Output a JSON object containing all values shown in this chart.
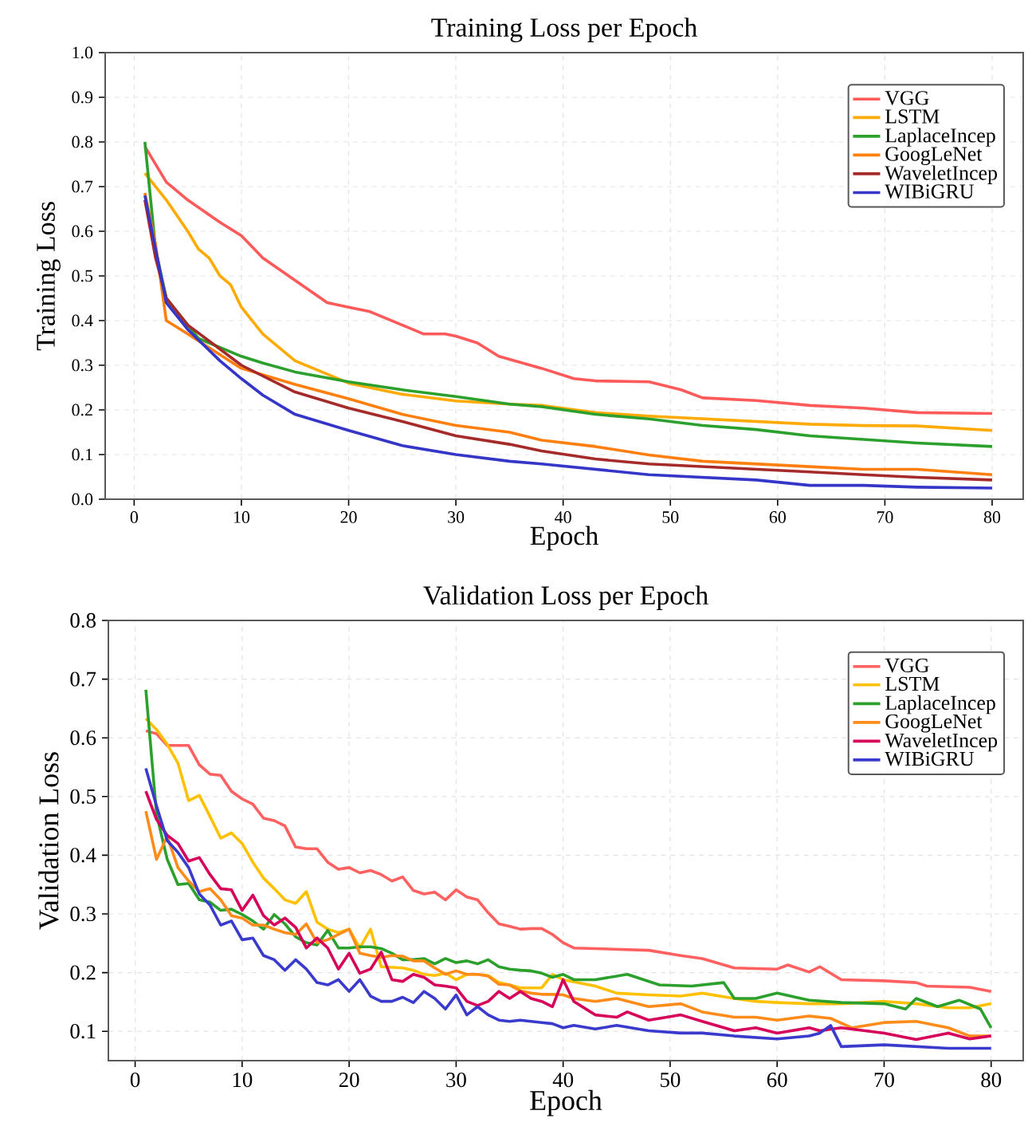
{
  "chart_data": [
    {
      "type": "line",
      "title": "Training Loss per Epoch",
      "xlabel": "Epoch",
      "ylabel": "Training Loss",
      "xlim": [
        -2.7,
        82.9
      ],
      "xticks": [
        0,
        10,
        20,
        30,
        40,
        50,
        60,
        70,
        80
      ],
      "ylim": [
        0,
        1
      ],
      "yticks": [
        {
          "value": 0,
          "label": "0.0"
        },
        0.1,
        0.2,
        0.3,
        0.4,
        0.5,
        0.6,
        0.7,
        0.8,
        0.9,
        {
          "value": 1,
          "label": "1.0"
        }
      ],
      "grid": true,
      "legend": "top right",
      "marker": "none",
      "line_style": "solid",
      "series": [
        {
          "name": "VGG",
          "color": "#ff5a5a",
          "x": [
            1,
            3,
            5,
            8,
            10,
            12,
            15,
            18,
            20,
            22,
            25,
            27,
            29,
            30,
            32,
            34,
            38,
            41,
            43,
            48,
            51,
            53,
            58,
            63,
            68,
            73,
            80
          ],
          "values": [
            0.79,
            0.71,
            0.67,
            0.62,
            0.59,
            0.54,
            0.49,
            0.44,
            0.43,
            0.42,
            0.39,
            0.37,
            0.37,
            0.365,
            0.35,
            0.32,
            0.293,
            0.27,
            0.265,
            0.263,
            0.245,
            0.227,
            0.221,
            0.21,
            0.204,
            0.194,
            0.192
          ]
        },
        {
          "name": "LSTM",
          "color": "#ffaa00",
          "x": [
            1,
            3,
            5,
            6,
            7,
            8,
            9,
            10,
            12,
            15,
            18,
            20,
            25,
            30,
            35,
            38,
            43,
            48,
            53,
            58,
            63,
            68,
            73,
            80
          ],
          "values": [
            0.73,
            0.67,
            0.6,
            0.56,
            0.54,
            0.5,
            0.48,
            0.43,
            0.37,
            0.31,
            0.28,
            0.26,
            0.235,
            0.22,
            0.213,
            0.21,
            0.194,
            0.186,
            0.18,
            0.174,
            0.168,
            0.165,
            0.164,
            0.154
          ]
        },
        {
          "name": "LaplaceIncep",
          "color": "#2ca02c",
          "x": [
            1,
            2,
            3,
            4,
            6,
            8,
            10,
            12,
            15,
            20,
            25,
            30,
            35,
            38,
            43,
            48,
            53,
            58,
            63,
            68,
            73,
            80
          ],
          "values": [
            0.8,
            0.56,
            0.45,
            0.42,
            0.36,
            0.34,
            0.32,
            0.305,
            0.285,
            0.263,
            0.245,
            0.23,
            0.213,
            0.207,
            0.19,
            0.18,
            0.165,
            0.156,
            0.142,
            0.134,
            0.126,
            0.118
          ]
        },
        {
          "name": "GoogLeNet",
          "color": "#ff7f0e",
          "x": [
            1,
            2,
            3,
            5,
            10,
            15,
            20,
            25,
            30,
            35,
            38,
            43,
            48,
            53,
            58,
            63,
            68,
            73,
            80
          ],
          "values": [
            0.686,
            0.57,
            0.4,
            0.37,
            0.293,
            0.257,
            0.225,
            0.19,
            0.165,
            0.15,
            0.132,
            0.118,
            0.099,
            0.085,
            0.079,
            0.073,
            0.067,
            0.067,
            0.055
          ]
        },
        {
          "name": "WaveletIncep",
          "color": "#a52a2a",
          "x": [
            1,
            2,
            3,
            5,
            10,
            15,
            20,
            25,
            30,
            35,
            38,
            43,
            48,
            53,
            58,
            63,
            68,
            73,
            80
          ],
          "values": [
            0.67,
            0.54,
            0.45,
            0.39,
            0.3,
            0.24,
            0.204,
            0.174,
            0.142,
            0.123,
            0.108,
            0.09,
            0.079,
            0.073,
            0.067,
            0.061,
            0.055,
            0.049,
            0.043
          ]
        },
        {
          "name": "WIBiGRU",
          "color": "#3535c8",
          "x": [
            1,
            3,
            5,
            8,
            10,
            12,
            15,
            20,
            25,
            30,
            35,
            38,
            43,
            48,
            53,
            58,
            63,
            68,
            73,
            80
          ],
          "values": [
            0.68,
            0.44,
            0.38,
            0.31,
            0.27,
            0.233,
            0.19,
            0.154,
            0.12,
            0.1,
            0.085,
            0.079,
            0.067,
            0.055,
            0.049,
            0.043,
            0.031,
            0.031,
            0.027,
            0.025
          ]
        }
      ]
    },
    {
      "type": "line",
      "title": "Validation Loss per Epoch",
      "xlabel": "Epoch",
      "ylabel": "Validation Loss",
      "xlim": [
        -2.5,
        83
      ],
      "xticks": [
        0,
        10,
        20,
        30,
        40,
        50,
        60,
        70,
        80
      ],
      "ylim": [
        0.05,
        0.8
      ],
      "yticks": [
        0.1,
        0.2,
        0.3,
        0.4,
        0.5,
        0.6,
        0.7,
        0.8
      ],
      "grid": true,
      "legend": "top right",
      "marker": "none",
      "line_style": "solid",
      "series": [
        {
          "name": "VGG",
          "color": "#ff6060",
          "x": [
            1,
            2,
            3,
            4,
            5,
            6,
            7,
            8,
            9,
            10,
            11,
            12,
            13,
            14,
            15,
            16,
            17,
            18,
            19,
            20,
            21,
            22,
            23,
            24,
            25,
            26,
            27,
            28,
            29,
            30,
            31,
            32,
            33,
            34,
            35,
            36,
            37,
            38,
            39,
            40,
            41,
            43,
            48,
            51,
            53,
            56,
            60,
            61,
            63,
            64,
            66,
            70,
            73,
            74,
            78,
            80
          ],
          "values": [
            0.612,
            0.607,
            0.587,
            0.587,
            0.587,
            0.554,
            0.538,
            0.536,
            0.509,
            0.496,
            0.487,
            0.463,
            0.459,
            0.45,
            0.414,
            0.411,
            0.411,
            0.388,
            0.376,
            0.379,
            0.37,
            0.374,
            0.367,
            0.356,
            0.363,
            0.34,
            0.334,
            0.337,
            0.324,
            0.341,
            0.329,
            0.324,
            0.302,
            0.283,
            0.279,
            0.274,
            0.275,
            0.275,
            0.265,
            0.251,
            0.242,
            0.241,
            0.238,
            0.229,
            0.224,
            0.208,
            0.206,
            0.213,
            0.201,
            0.21,
            0.188,
            0.186,
            0.183,
            0.177,
            0.175,
            0.168
          ]
        },
        {
          "name": "LSTM",
          "color": "#ffc000",
          "x": [
            1,
            2,
            3,
            4,
            5,
            6,
            7,
            8,
            9,
            10,
            11,
            12,
            13,
            14,
            15,
            16,
            17,
            18,
            19,
            20,
            21,
            22,
            23,
            24,
            25,
            26,
            27,
            28,
            29,
            30,
            31,
            32,
            33,
            34,
            35,
            36,
            37,
            38,
            39,
            40,
            43,
            45,
            48,
            51,
            53,
            56,
            58,
            60,
            63,
            66,
            70,
            73,
            76,
            78,
            80
          ],
          "values": [
            0.633,
            0.614,
            0.589,
            0.557,
            0.493,
            0.502,
            0.466,
            0.429,
            0.438,
            0.42,
            0.388,
            0.361,
            0.343,
            0.324,
            0.318,
            0.338,
            0.286,
            0.274,
            0.268,
            0.274,
            0.242,
            0.274,
            0.21,
            0.209,
            0.208,
            0.204,
            0.197,
            0.195,
            0.199,
            0.188,
            0.197,
            0.197,
            0.195,
            0.183,
            0.179,
            0.174,
            0.174,
            0.174,
            0.197,
            0.188,
            0.177,
            0.165,
            0.162,
            0.16,
            0.165,
            0.156,
            0.151,
            0.149,
            0.147,
            0.147,
            0.151,
            0.147,
            0.14,
            0.14,
            0.147
          ]
        },
        {
          "name": "LaplaceIncep",
          "color": "#2ca02c",
          "x": [
            1,
            2,
            3,
            4,
            5,
            6,
            7,
            8,
            9,
            10,
            11,
            12,
            13,
            14,
            15,
            16,
            17,
            18,
            19,
            20,
            21,
            22,
            23,
            24,
            25,
            26,
            27,
            28,
            29,
            30,
            31,
            32,
            33,
            34,
            35,
            36,
            37,
            38,
            39,
            40,
            41,
            43,
            46,
            49,
            52,
            55,
            56,
            58,
            60,
            63,
            66,
            70,
            72,
            73,
            75,
            77,
            79,
            80
          ],
          "values": [
            0.682,
            0.47,
            0.393,
            0.35,
            0.352,
            0.324,
            0.32,
            0.306,
            0.308,
            0.299,
            0.288,
            0.274,
            0.299,
            0.283,
            0.261,
            0.251,
            0.247,
            0.272,
            0.242,
            0.242,
            0.244,
            0.244,
            0.241,
            0.233,
            0.222,
            0.222,
            0.224,
            0.215,
            0.224,
            0.217,
            0.22,
            0.215,
            0.222,
            0.21,
            0.206,
            0.204,
            0.203,
            0.199,
            0.192,
            0.197,
            0.188,
            0.188,
            0.197,
            0.179,
            0.177,
            0.183,
            0.156,
            0.156,
            0.165,
            0.153,
            0.149,
            0.147,
            0.138,
            0.156,
            0.142,
            0.153,
            0.138,
            0.106
          ]
        },
        {
          "name": "GoogLeNet",
          "color": "#ff8c1a",
          "x": [
            1,
            2,
            3,
            4,
            5,
            6,
            7,
            8,
            9,
            10,
            11,
            12,
            13,
            14,
            15,
            16,
            17,
            18,
            19,
            20,
            21,
            22,
            23,
            24,
            25,
            26,
            27,
            28,
            29,
            30,
            31,
            32,
            33,
            34,
            35,
            36,
            37,
            38,
            39,
            40,
            41,
            43,
            45,
            48,
            51,
            53,
            56,
            58,
            60,
            63,
            65,
            67,
            70,
            73,
            76,
            78,
            80
          ],
          "values": [
            0.475,
            0.393,
            0.432,
            0.379,
            0.356,
            0.338,
            0.343,
            0.324,
            0.297,
            0.293,
            0.281,
            0.281,
            0.274,
            0.268,
            0.265,
            0.283,
            0.251,
            0.256,
            0.265,
            0.274,
            0.233,
            0.229,
            0.226,
            0.229,
            0.228,
            0.22,
            0.22,
            0.208,
            0.197,
            0.203,
            0.197,
            0.197,
            0.194,
            0.18,
            0.179,
            0.169,
            0.165,
            0.163,
            0.163,
            0.162,
            0.156,
            0.151,
            0.156,
            0.142,
            0.147,
            0.133,
            0.124,
            0.124,
            0.119,
            0.126,
            0.122,
            0.106,
            0.115,
            0.117,
            0.106,
            0.092,
            0.092
          ]
        },
        {
          "name": "WaveletIncep",
          "color": "#d6005a",
          "x": [
            1,
            2,
            3,
            4,
            5,
            6,
            7,
            8,
            9,
            10,
            11,
            12,
            13,
            14,
            15,
            16,
            17,
            18,
            19,
            20,
            21,
            22,
            23,
            24,
            25,
            26,
            27,
            28,
            29,
            30,
            31,
            32,
            33,
            34,
            35,
            36,
            37,
            38,
            39,
            40,
            41,
            43,
            45,
            46,
            48,
            51,
            53,
            56,
            58,
            60,
            63,
            64,
            66,
            70,
            73,
            76,
            78,
            80
          ],
          "values": [
            0.509,
            0.461,
            0.434,
            0.42,
            0.39,
            0.396,
            0.367,
            0.343,
            0.341,
            0.306,
            0.332,
            0.297,
            0.281,
            0.293,
            0.277,
            0.242,
            0.259,
            0.242,
            0.206,
            0.233,
            0.199,
            0.206,
            0.235,
            0.188,
            0.185,
            0.197,
            0.192,
            0.179,
            0.177,
            0.174,
            0.151,
            0.144,
            0.151,
            0.168,
            0.156,
            0.168,
            0.156,
            0.151,
            0.142,
            0.188,
            0.151,
            0.128,
            0.124,
            0.133,
            0.119,
            0.128,
            0.117,
            0.101,
            0.106,
            0.097,
            0.106,
            0.101,
            0.106,
            0.097,
            0.086,
            0.097,
            0.087,
            0.092
          ]
        },
        {
          "name": "WIBiGRU",
          "color": "#3a3acc",
          "x": [
            1,
            2,
            3,
            4,
            5,
            6,
            7,
            8,
            9,
            10,
            11,
            12,
            13,
            14,
            15,
            16,
            17,
            18,
            19,
            20,
            21,
            22,
            23,
            24,
            25,
            26,
            27,
            28,
            29,
            30,
            31,
            32,
            33,
            34,
            35,
            36,
            37,
            38,
            39,
            40,
            41,
            43,
            45,
            48,
            51,
            53,
            56,
            60,
            63,
            64,
            65,
            66,
            70,
            73,
            76,
            80
          ],
          "values": [
            0.548,
            0.484,
            0.425,
            0.405,
            0.379,
            0.334,
            0.315,
            0.281,
            0.288,
            0.256,
            0.259,
            0.229,
            0.222,
            0.204,
            0.222,
            0.206,
            0.183,
            0.179,
            0.188,
            0.168,
            0.188,
            0.16,
            0.151,
            0.151,
            0.158,
            0.149,
            0.168,
            0.156,
            0.138,
            0.162,
            0.128,
            0.142,
            0.128,
            0.119,
            0.117,
            0.119,
            0.117,
            0.115,
            0.113,
            0.106,
            0.11,
            0.104,
            0.11,
            0.101,
            0.097,
            0.097,
            0.092,
            0.087,
            0.092,
            0.097,
            0.11,
            0.074,
            0.077,
            0.074,
            0.071,
            0.071
          ]
        }
      ]
    }
  ]
}
